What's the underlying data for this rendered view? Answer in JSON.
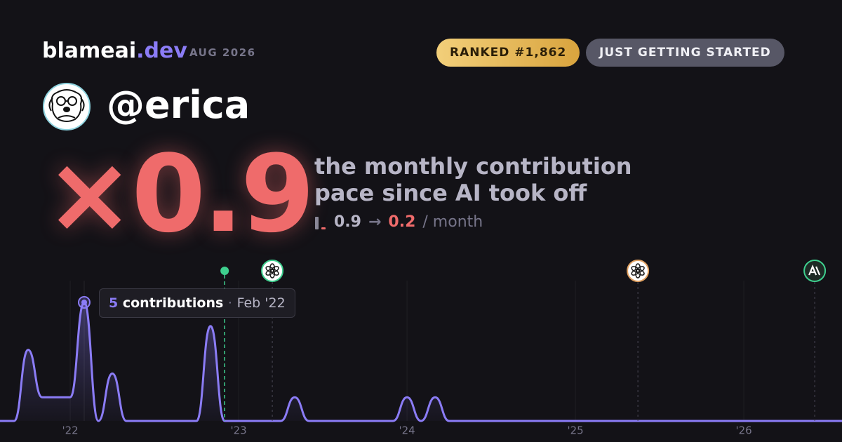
{
  "header": {
    "brand": "blameai",
    "brand_tld": ".dev",
    "period": "AUG 2026",
    "rank_badge": "RANKED #1,862",
    "status_badge": "JUST GETTING STARTED",
    "handle": "@erica",
    "multiplier": "×0.9",
    "caption_line1": "the monthly contribution",
    "caption_line2": "pace since AI took off",
    "pace_before": "0.9",
    "pace_arrow": "→",
    "pace_after": "0.2",
    "pace_unit": "/ month"
  },
  "chart_data": {
    "type": "line",
    "color": "#8b7cf6",
    "x": [
      2021.583,
      2021.667,
      2021.75,
      2021.833,
      2021.917,
      2022,
      2022.083,
      2022.167,
      2022.25,
      2022.333,
      2022.417,
      2022.5,
      2022.583,
      2022.667,
      2022.75,
      2022.833,
      2022.917,
      2023,
      2023.083,
      2023.167,
      2023.25,
      2023.333,
      2023.417,
      2023.5,
      2023.583,
      2023.667,
      2023.75,
      2023.833,
      2023.917,
      2024,
      2024.083,
      2024.167,
      2024.25,
      2024.333,
      2024.417,
      2024.5,
      2024.583,
      2024.667,
      2024.75,
      2024.833,
      2024.917,
      2025,
      2025.083,
      2025.167,
      2025.25,
      2025.333,
      2025.417,
      2025.5,
      2025.583,
      2025.667,
      2025.75,
      2025.833,
      2025.917,
      2026,
      2026.083,
      2026.167,
      2026.25,
      2026.333,
      2026.417,
      2026.5,
      2026.583
    ],
    "values": [
      0,
      0,
      3,
      1,
      1,
      1,
      5,
      0,
      2,
      0,
      0,
      0,
      0,
      0,
      0,
      4,
      0,
      0,
      0,
      0,
      0,
      1,
      0,
      0,
      0,
      0,
      0,
      0,
      0,
      1,
      0,
      1,
      0,
      0,
      0,
      0,
      0,
      0,
      0,
      0,
      0,
      0,
      0,
      0,
      0,
      0,
      0,
      0,
      0,
      0,
      0,
      0,
      0,
      0,
      0,
      0,
      0,
      0,
      0,
      0,
      0
    ],
    "xlim": [
      2021.583,
      2026.583
    ],
    "xticks": [
      {
        "value": 2022,
        "label": "'22"
      },
      {
        "value": 2023,
        "label": "'23"
      },
      {
        "value": 2024,
        "label": "'24"
      },
      {
        "value": 2025,
        "label": "'25"
      },
      {
        "value": 2026,
        "label": "'26"
      }
    ],
    "ylim": [
      0,
      5
    ],
    "markers": [
      {
        "x": 2022.917,
        "shape": "dot",
        "color": "#3ecf8e"
      },
      {
        "x": 2023.2,
        "shape": "openai",
        "color": "#3ecf8e"
      },
      {
        "x": 2025.371,
        "shape": "openai",
        "color": "#e0a060"
      },
      {
        "x": 2026.421,
        "shape": "anthropic",
        "color": "#3ecf8e"
      }
    ],
    "tooltip": {
      "value": 5,
      "label": "contributions",
      "separator": "·",
      "date": "Feb '22",
      "x": 2022.083
    }
  }
}
